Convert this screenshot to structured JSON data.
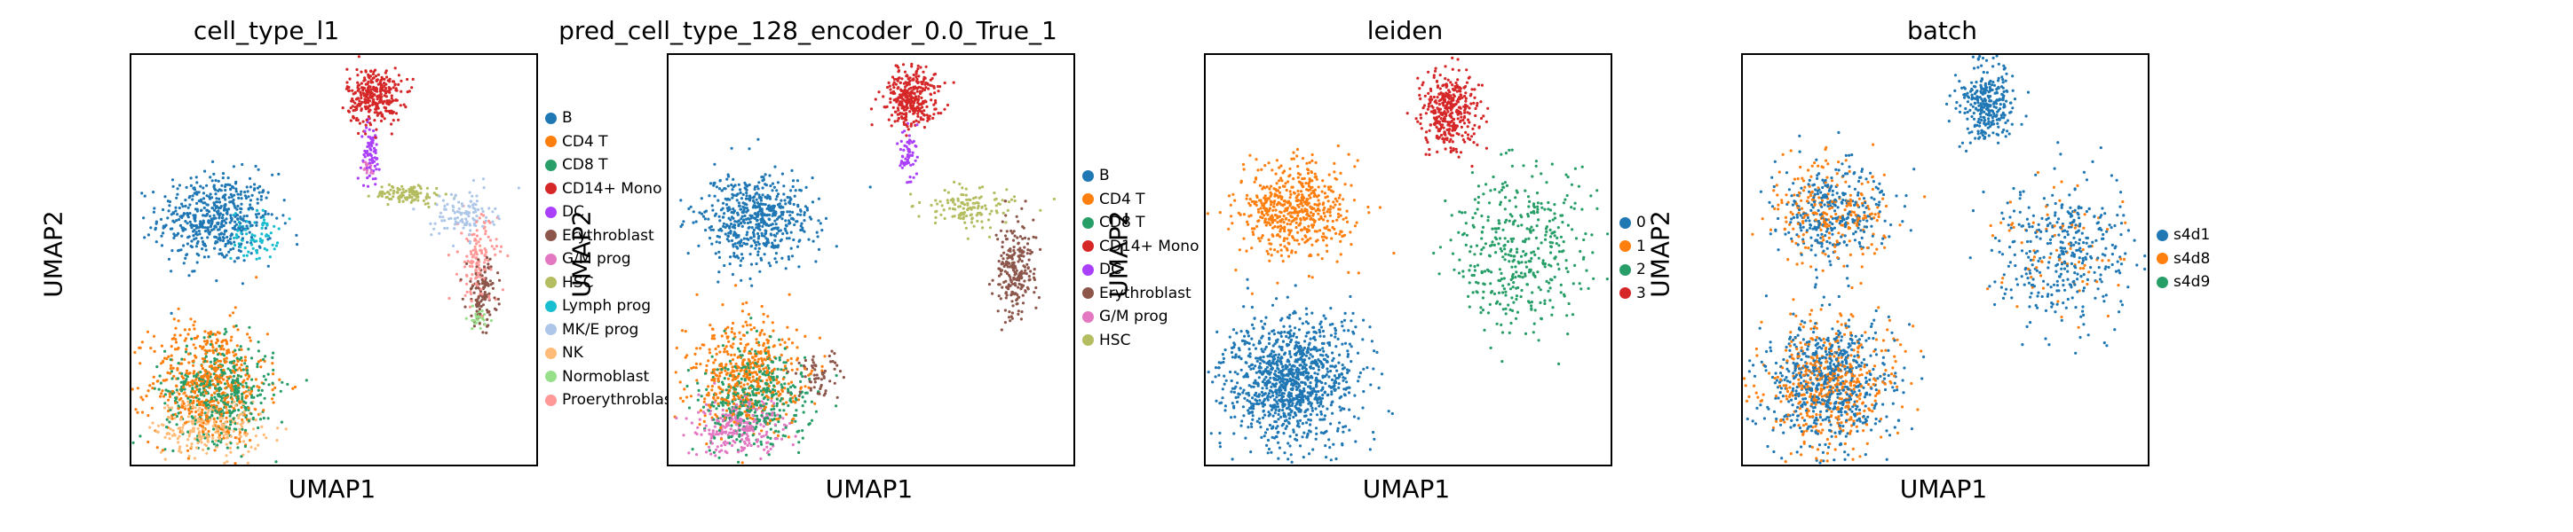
{
  "chart_data": [
    {
      "type": "scatter",
      "title": "cell_type_l1",
      "xlabel": "UMAP1",
      "ylabel": "UMAP2",
      "grid": false,
      "legend_placement": "right",
      "categories": [
        "B",
        "CD4 T",
        "CD8 T",
        "CD14+ Mono",
        "DC",
        "Erythroblast",
        "G/M prog",
        "HSC",
        "Lymph prog",
        "MK/E prog",
        "NK",
        "Normoblast",
        "Proerythroblast"
      ],
      "colors": [
        "#1f77b4",
        "#ff7f0e",
        "#279e68",
        "#d62728",
        "#aa40fc",
        "#8c564b",
        "#e377c2",
        "#b5bd61",
        "#17becf",
        "#aec7e8",
        "#ffbb78",
        "#98df8a",
        "#ff9896"
      ],
      "clusters": [
        {
          "category": "B",
          "x": 2.2,
          "y": 6.0,
          "sx": 0.75,
          "sy": 0.55,
          "n": 520
        },
        {
          "category": "Lymph prog",
          "x": 3.2,
          "y": 5.6,
          "sx": 0.3,
          "sy": 0.3,
          "n": 70
        },
        {
          "category": "CD4 T",
          "x": 2.0,
          "y": 2.0,
          "sx": 0.75,
          "sy": 0.75,
          "n": 520
        },
        {
          "category": "CD8 T",
          "x": 2.3,
          "y": 1.8,
          "sx": 0.7,
          "sy": 0.6,
          "n": 420
        },
        {
          "category": "NK",
          "x": 2.0,
          "y": 0.9,
          "sx": 0.7,
          "sy": 0.35,
          "n": 240
        },
        {
          "category": "CD14+ Mono",
          "x": 6.3,
          "y": 9.0,
          "sx": 0.35,
          "sy": 0.35,
          "n": 320
        },
        {
          "category": "DC",
          "x": 6.2,
          "y": 7.6,
          "sx": 0.12,
          "sy": 0.35,
          "n": 70
        },
        {
          "category": "HSC",
          "x": 7.2,
          "y": 6.6,
          "sx": 0.45,
          "sy": 0.12,
          "n": 110
        },
        {
          "category": "MK/E prog",
          "x": 8.6,
          "y": 6.1,
          "sx": 0.4,
          "sy": 0.3,
          "n": 110
        },
        {
          "category": "Proerythroblast",
          "x": 9.0,
          "y": 5.0,
          "sx": 0.25,
          "sy": 0.55,
          "n": 130
        },
        {
          "category": "Erythroblast",
          "x": 9.1,
          "y": 4.2,
          "sx": 0.2,
          "sy": 0.4,
          "n": 120
        },
        {
          "category": "Normoblast",
          "x": 9.0,
          "y": 3.6,
          "sx": 0.15,
          "sy": 0.15,
          "n": 30
        },
        {
          "category": "G/M prog",
          "x": 6.1,
          "y": 7.2,
          "sx": 0.1,
          "sy": 0.15,
          "n": 20
        }
      ]
    },
    {
      "type": "scatter",
      "title": "pred_cell_type_128_encoder_0.0_True_1",
      "xlabel": "UMAP1",
      "ylabel": "UMAP2",
      "grid": false,
      "legend_placement": "right",
      "categories": [
        "B",
        "CD4 T",
        "CD8 T",
        "CD14+ Mono",
        "DC",
        "Erythroblast",
        "G/M prog",
        "HSC"
      ],
      "colors": [
        "#1f77b4",
        "#ff7f0e",
        "#279e68",
        "#d62728",
        "#aa40fc",
        "#8c564b",
        "#e377c2",
        "#b5bd61"
      ],
      "clusters": [
        {
          "category": "B",
          "x": 2.2,
          "y": 6.0,
          "sx": 0.75,
          "sy": 0.55,
          "n": 560
        },
        {
          "category": "CD4 T",
          "x": 2.0,
          "y": 2.2,
          "sx": 0.75,
          "sy": 0.7,
          "n": 480
        },
        {
          "category": "CD8 T",
          "x": 2.3,
          "y": 1.6,
          "sx": 0.7,
          "sy": 0.6,
          "n": 420
        },
        {
          "category": "G/M prog",
          "x": 1.8,
          "y": 0.9,
          "sx": 0.6,
          "sy": 0.35,
          "n": 260
        },
        {
          "category": "Erythroblast",
          "x": 3.9,
          "y": 2.1,
          "sx": 0.3,
          "sy": 0.3,
          "n": 60
        },
        {
          "category": "CD14+ Mono",
          "x": 6.3,
          "y": 9.0,
          "sx": 0.35,
          "sy": 0.35,
          "n": 320
        },
        {
          "category": "DC",
          "x": 6.2,
          "y": 7.6,
          "sx": 0.12,
          "sy": 0.35,
          "n": 60
        },
        {
          "category": "HSC",
          "x": 7.8,
          "y": 6.3,
          "sx": 0.6,
          "sy": 0.25,
          "n": 130
        },
        {
          "category": "Erythroblast",
          "x": 9.0,
          "y": 4.7,
          "sx": 0.25,
          "sy": 0.6,
          "n": 230
        }
      ]
    },
    {
      "type": "scatter",
      "title": "leiden",
      "xlabel": "UMAP1",
      "ylabel": "UMAP2",
      "grid": false,
      "legend_placement": "right",
      "categories": [
        "0",
        "1",
        "2",
        "3"
      ],
      "colors": [
        "#1f77b4",
        "#ff7f0e",
        "#279e68",
        "#d62728"
      ],
      "clusters": [
        {
          "category": "0",
          "x": 2.2,
          "y": 2.0,
          "sx": 0.85,
          "sy": 0.8,
          "n": 1100
        },
        {
          "category": "1",
          "x": 2.3,
          "y": 6.2,
          "sx": 0.75,
          "sy": 0.6,
          "n": 560
        },
        {
          "category": "2",
          "x": 8.2,
          "y": 5.2,
          "sx": 0.9,
          "sy": 0.9,
          "n": 420
        },
        {
          "category": "3",
          "x": 6.3,
          "y": 8.7,
          "sx": 0.35,
          "sy": 0.5,
          "n": 380
        }
      ]
    },
    {
      "type": "scatter",
      "title": "batch",
      "xlabel": "UMAP1",
      "ylabel": "UMAP2",
      "grid": false,
      "legend_placement": "right",
      "categories": [
        "s4d1",
        "s4d8",
        "s4d9"
      ],
      "colors": [
        "#1f77b4",
        "#ff7f0e",
        "#279e68"
      ],
      "clusters": [
        {
          "category": "s4d1",
          "x": 2.2,
          "y": 2.0,
          "sx": 0.85,
          "sy": 0.8,
          "n": 620
        },
        {
          "category": "s4d8",
          "x": 2.2,
          "y": 2.0,
          "sx": 0.85,
          "sy": 0.8,
          "n": 480
        },
        {
          "category": "s4d1",
          "x": 2.3,
          "y": 6.2,
          "sx": 0.75,
          "sy": 0.6,
          "n": 320
        },
        {
          "category": "s4d8",
          "x": 2.3,
          "y": 6.2,
          "sx": 0.75,
          "sy": 0.6,
          "n": 240
        },
        {
          "category": "s4d1",
          "x": 6.3,
          "y": 8.8,
          "sx": 0.35,
          "sy": 0.5,
          "n": 300
        },
        {
          "category": "s4d1",
          "x": 8.3,
          "y": 5.2,
          "sx": 0.9,
          "sy": 0.9,
          "n": 360
        },
        {
          "category": "s4d8",
          "x": 8.3,
          "y": 5.2,
          "sx": 0.9,
          "sy": 0.9,
          "n": 80
        }
      ]
    }
  ]
}
